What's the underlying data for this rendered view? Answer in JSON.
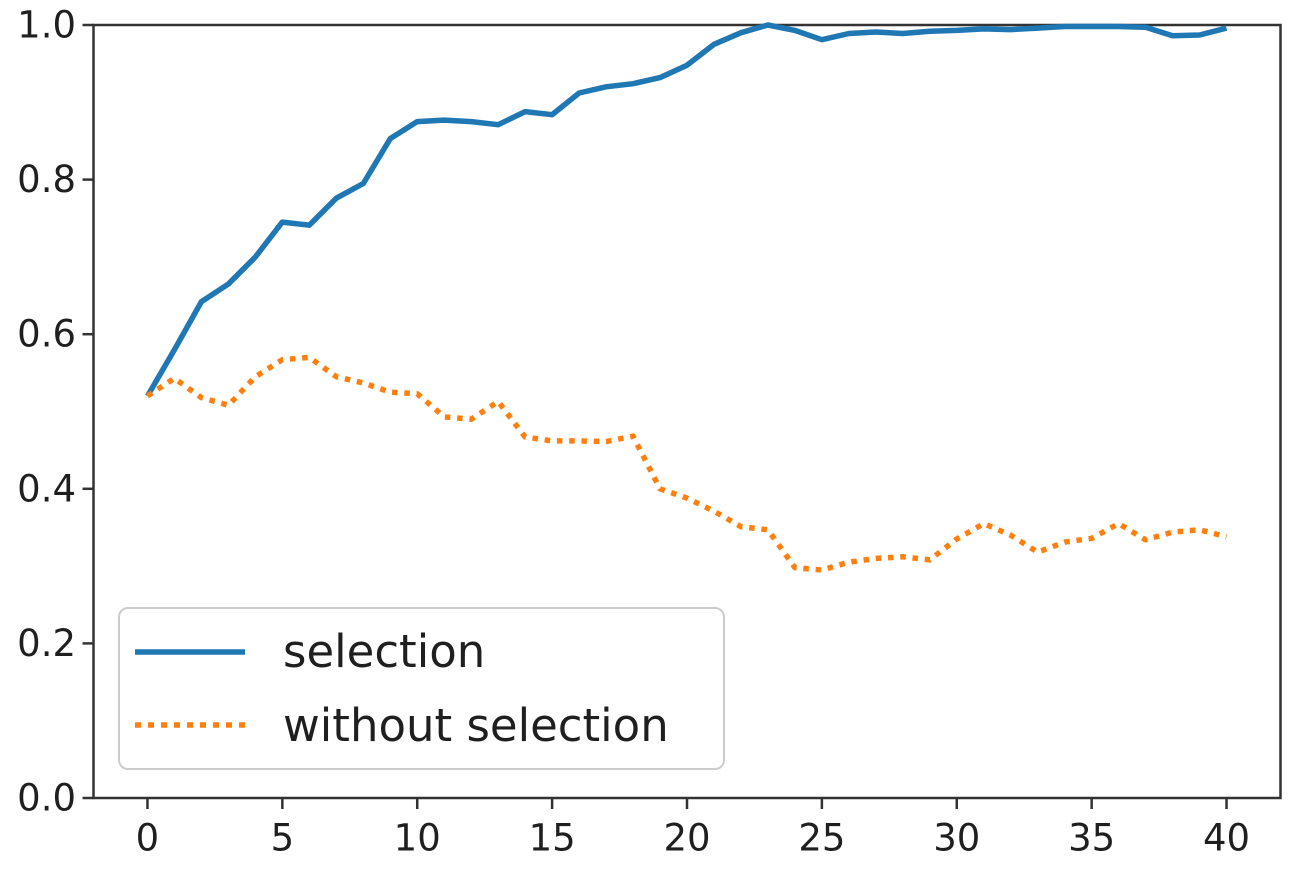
{
  "chart_data": {
    "type": "line",
    "title": "",
    "xlabel": "",
    "ylabel": "",
    "x": [
      0,
      1,
      2,
      3,
      4,
      5,
      6,
      7,
      8,
      9,
      10,
      11,
      12,
      13,
      14,
      15,
      16,
      17,
      18,
      19,
      20,
      21,
      22,
      23,
      24,
      25,
      26,
      27,
      28,
      29,
      30,
      31,
      32,
      33,
      34,
      35,
      36,
      37,
      38,
      39,
      40
    ],
    "series": [
      {
        "name": "selection",
        "color": "#1f77b4",
        "style": "solid",
        "values": [
          0.52,
          0.58,
          0.642,
          0.665,
          0.7,
          0.745,
          0.741,
          0.776,
          0.795,
          0.853,
          0.875,
          0.877,
          0.875,
          0.871,
          0.888,
          0.884,
          0.912,
          0.92,
          0.924,
          0.932,
          0.948,
          0.975,
          0.99,
          1.0,
          0.993,
          0.981,
          0.989,
          0.991,
          0.989,
          0.992,
          0.993,
          0.995,
          0.994,
          0.996,
          0.998,
          0.998,
          0.998,
          0.997,
          0.986,
          0.987,
          0.996
        ]
      },
      {
        "name": "without selection",
        "color": "#ff7f0e",
        "style": "dotted",
        "values": [
          0.52,
          0.543,
          0.518,
          0.508,
          0.545,
          0.567,
          0.57,
          0.545,
          0.537,
          0.525,
          0.523,
          0.493,
          0.49,
          0.513,
          0.467,
          0.462,
          0.462,
          0.461,
          0.468,
          0.4,
          0.388,
          0.371,
          0.351,
          0.347,
          0.298,
          0.295,
          0.305,
          0.31,
          0.312,
          0.308,
          0.335,
          0.355,
          0.34,
          0.318,
          0.331,
          0.336,
          0.355,
          0.334,
          0.344,
          0.347,
          0.338
        ]
      }
    ],
    "xlim": [
      -2,
      42
    ],
    "ylim": [
      0.0,
      1.0
    ],
    "xticks": [
      0,
      5,
      10,
      15,
      20,
      25,
      30,
      35,
      40
    ],
    "xtick_labels": [
      "0",
      "5",
      "10",
      "15",
      "20",
      "25",
      "30",
      "35",
      "40"
    ],
    "yticks": [
      0.0,
      0.2,
      0.4,
      0.6,
      0.8,
      1.0
    ],
    "ytick_labels": [
      "0.0",
      "0.2",
      "0.4",
      "0.6",
      "0.8",
      "1.0"
    ],
    "grid": false,
    "legend_position": "lower left"
  },
  "legend": {
    "items": [
      {
        "label": "selection"
      },
      {
        "label": "without selection"
      }
    ]
  },
  "style": {
    "axis_color": "#333333",
    "tick_label_color": "#1f1f1f",
    "legend_border_color": "#cccccc",
    "background": "#ffffff"
  }
}
